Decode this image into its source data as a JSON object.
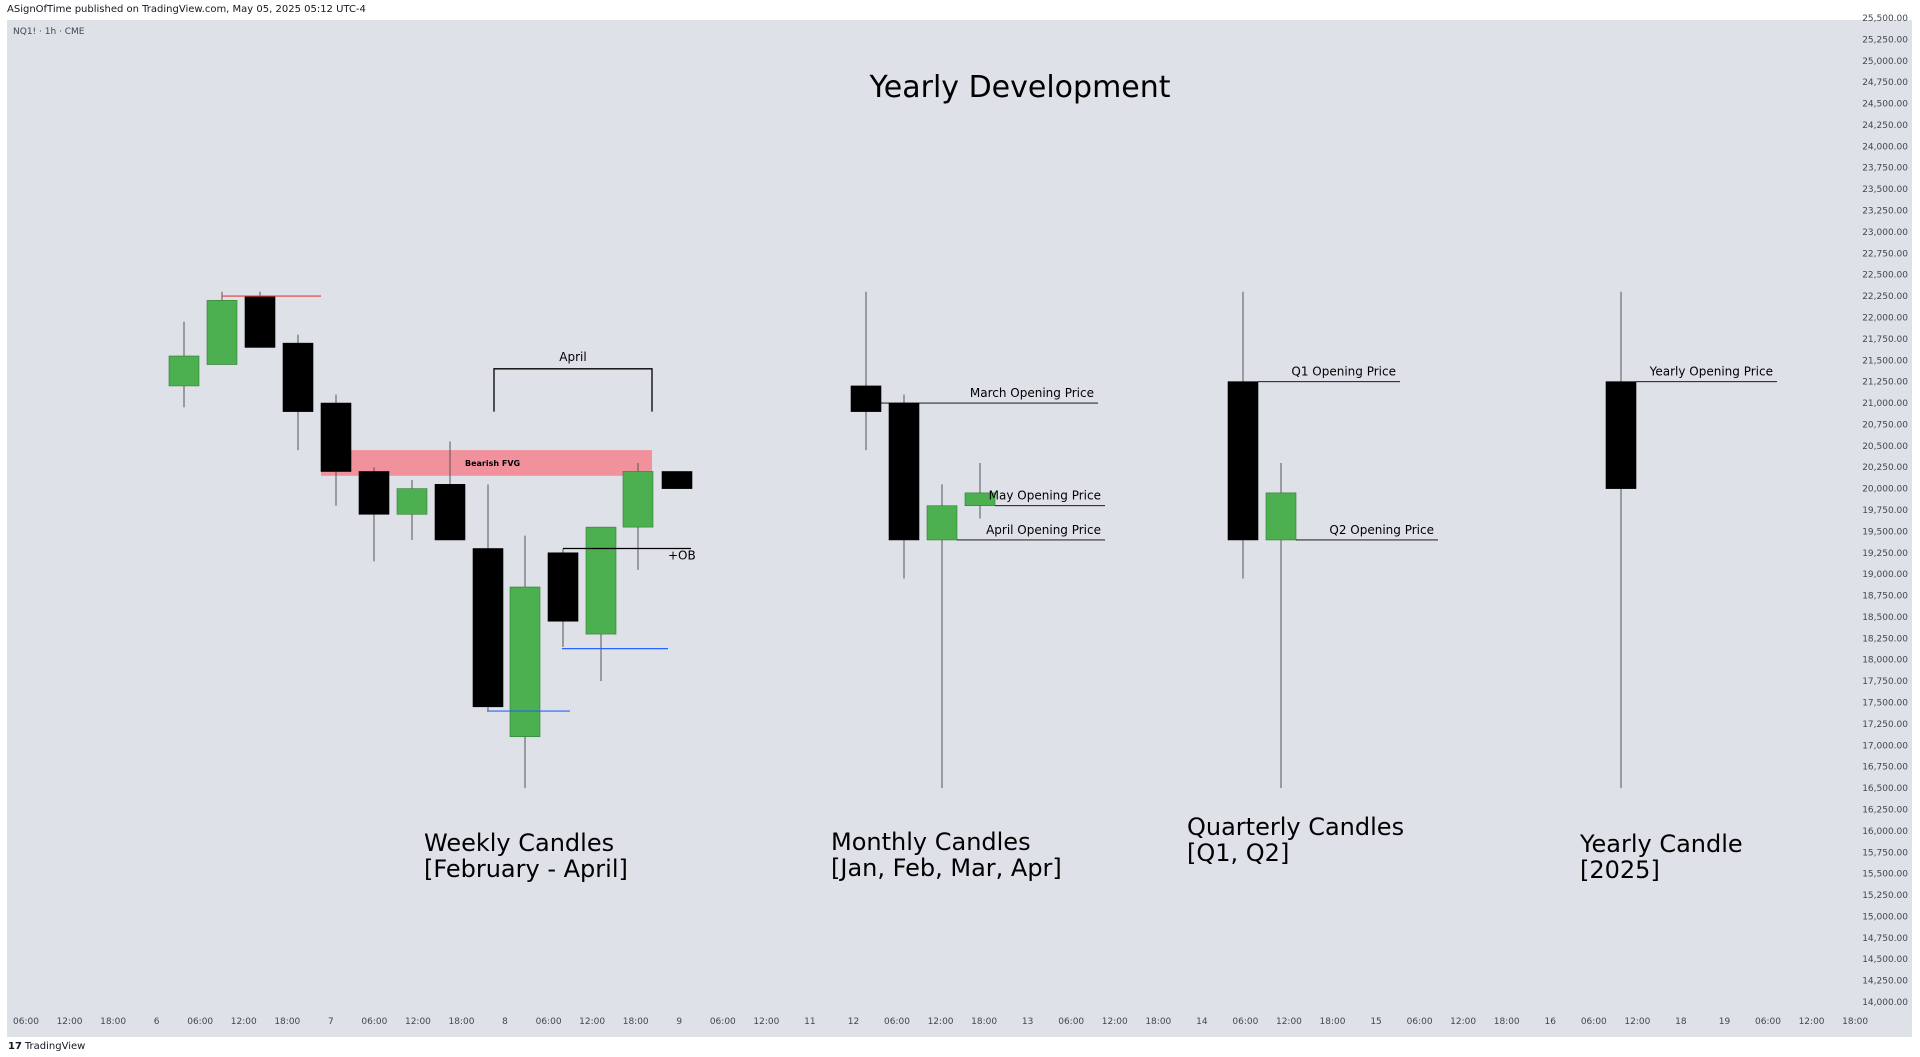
{
  "header": {
    "published_text": "ASignOfTime published on TradingView.com, May 05, 2025 05:12 UTC-4",
    "symbol_label": "NQ1! · 1h · CME"
  },
  "footer": {
    "logo_mark": "17",
    "logo_text": "TradingView"
  },
  "chart_data": {
    "type": "candlestick",
    "title": "Yearly Development",
    "ylim": [
      14000,
      25500
    ],
    "y_ticks": [
      14000,
      14250,
      14500,
      14750,
      15000,
      15250,
      15500,
      15750,
      16000,
      16250,
      16500,
      16750,
      17000,
      17250,
      17500,
      17750,
      18000,
      18250,
      18500,
      18750,
      19000,
      19250,
      19500,
      19750,
      20000,
      20250,
      20500,
      20750,
      21000,
      21250,
      21500,
      21750,
      22000,
      22250,
      22500,
      22750,
      23000,
      23250,
      23500,
      23750,
      24000,
      24250,
      24500,
      24750,
      25000,
      25250,
      25500
    ],
    "x_ticks": [
      "06:00",
      "12:00",
      "18:00",
      "6",
      "06:00",
      "12:00",
      "18:00",
      "7",
      "06:00",
      "12:00",
      "18:00",
      "8",
      "06:00",
      "12:00",
      "18:00",
      "9",
      "06:00",
      "12:00",
      "11",
      "12",
      "06:00",
      "12:00",
      "18:00",
      "13",
      "06:00",
      "12:00",
      "18:00",
      "14",
      "06:00",
      "12:00",
      "18:00",
      "15",
      "06:00",
      "12:00",
      "18:00",
      "16",
      "06:00",
      "12:00",
      "18",
      "19",
      "06:00",
      "12:00",
      "18:00"
    ],
    "groups": [
      {
        "caption": [
          "Weekly Candles",
          "[February - April]"
        ],
        "candles": [
          {
            "open": 21200,
            "high": 21950,
            "low": 20950,
            "close": 21550,
            "dir": "up"
          },
          {
            "open": 21450,
            "high": 22300,
            "low": 21450,
            "close": 22200,
            "dir": "up"
          },
          {
            "open": 22250,
            "high": 22300,
            "low": 21650,
            "close": 21650,
            "dir": "down"
          },
          {
            "open": 21700,
            "high": 21800,
            "low": 20450,
            "close": 20900,
            "dir": "down"
          },
          {
            "open": 21000,
            "high": 21100,
            "low": 19800,
            "close": 20200,
            "dir": "down"
          },
          {
            "open": 20200,
            "high": 20250,
            "low": 19150,
            "close": 19700,
            "dir": "down"
          },
          {
            "open": 19700,
            "high": 20100,
            "low": 19400,
            "close": 20000,
            "dir": "up"
          },
          {
            "open": 20050,
            "high": 20550,
            "low": 19400,
            "close": 19400,
            "dir": "down"
          },
          {
            "open": 19300,
            "high": 20050,
            "low": 17400,
            "close": 17450,
            "dir": "down"
          },
          {
            "open": 17100,
            "high": 19450,
            "low": 16500,
            "close": 18850,
            "dir": "up"
          },
          {
            "open": 19250,
            "high": 19300,
            "low": 18150,
            "close": 18450,
            "dir": "down"
          },
          {
            "open": 18300,
            "high": 19550,
            "low": 17750,
            "close": 19550,
            "dir": "up"
          },
          {
            "open": 19550,
            "high": 20300,
            "low": 19050,
            "close": 20200,
            "dir": "up"
          },
          {
            "open": 20200,
            "high": 20200,
            "low": 20000,
            "close": 20000,
            "dir": "down"
          }
        ],
        "annotations": {
          "range_label": "April",
          "zone_label": "Bearish FVG",
          "ob_label": "+OB"
        }
      },
      {
        "caption": [
          "Monthly Candles",
          "[Jan, Feb, Mar, Apr]"
        ],
        "candles": [
          {
            "open": 21200,
            "high": 22300,
            "low": 20450,
            "close": 20900,
            "dir": "down"
          },
          {
            "open": 21000,
            "high": 21100,
            "low": 18950,
            "close": 19400,
            "dir": "down"
          },
          {
            "open": 19400,
            "high": 20050,
            "low": 16500,
            "close": 19800,
            "dir": "up"
          },
          {
            "open": 19800,
            "high": 20300,
            "low": 19650,
            "close": 19950,
            "dir": "up"
          }
        ],
        "levels": [
          {
            "label": "March Opening Price",
            "price": 21000
          },
          {
            "label": "May Opening Price",
            "price": 19800
          },
          {
            "label": "April Opening Price",
            "price": 19400
          }
        ]
      },
      {
        "caption": [
          "Quarterly Candles",
          "[Q1, Q2]"
        ],
        "candles": [
          {
            "open": 21250,
            "high": 22300,
            "low": 18950,
            "close": 19400,
            "dir": "down"
          },
          {
            "open": 19400,
            "high": 20300,
            "low": 16500,
            "close": 19950,
            "dir": "up"
          }
        ],
        "levels": [
          {
            "label": "Q1 Opening Price",
            "price": 21250
          },
          {
            "label": "Q2 Opening Price",
            "price": 19400
          }
        ]
      },
      {
        "caption": [
          "Yearly Candle",
          "[2025]"
        ],
        "candles": [
          {
            "open": 21250,
            "high": 22300,
            "low": 16500,
            "close": 20000,
            "dir": "down"
          }
        ],
        "levels": [
          {
            "label": "Yearly Opening Price",
            "price": 21250
          }
        ]
      }
    ],
    "colors": {
      "up": "#4caf50",
      "down": "#000000",
      "background": "#dfe1e8",
      "fvg_zone": "#f0919c",
      "red_line": "#e53935",
      "blue_line": "#2962ff"
    }
  }
}
